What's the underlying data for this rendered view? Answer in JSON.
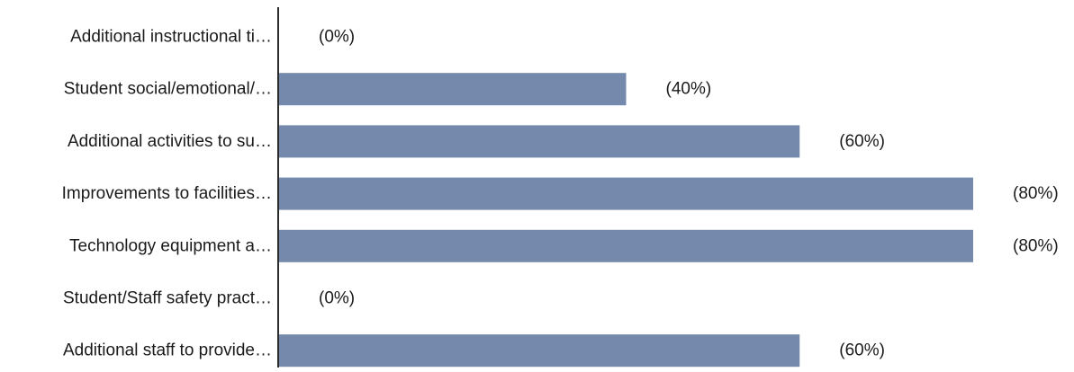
{
  "chart_data": {
    "type": "bar",
    "orientation": "horizontal",
    "categories": [
      "Additional instructional ti…",
      "Student social/emotional/…",
      "Additional activities to su…",
      "Improvements to facilities…",
      "Technology equipment a…",
      "Student/Staff safety pract…",
      "Additional staff to provide…"
    ],
    "values": [
      0,
      40,
      60,
      80,
      80,
      0,
      60
    ],
    "data_labels": [
      "(0%)",
      "(40%)",
      "(60%)",
      "(80%)",
      "(80%)",
      "(0%)",
      "(60%)"
    ],
    "xlim": [
      0,
      80
    ],
    "title": "",
    "xlabel": "",
    "ylabel": "",
    "grid": false,
    "legend": "none",
    "colors": {
      "bar": "#7489ab",
      "axis": "#2b2b2b",
      "text": "#1a1a1a"
    }
  }
}
